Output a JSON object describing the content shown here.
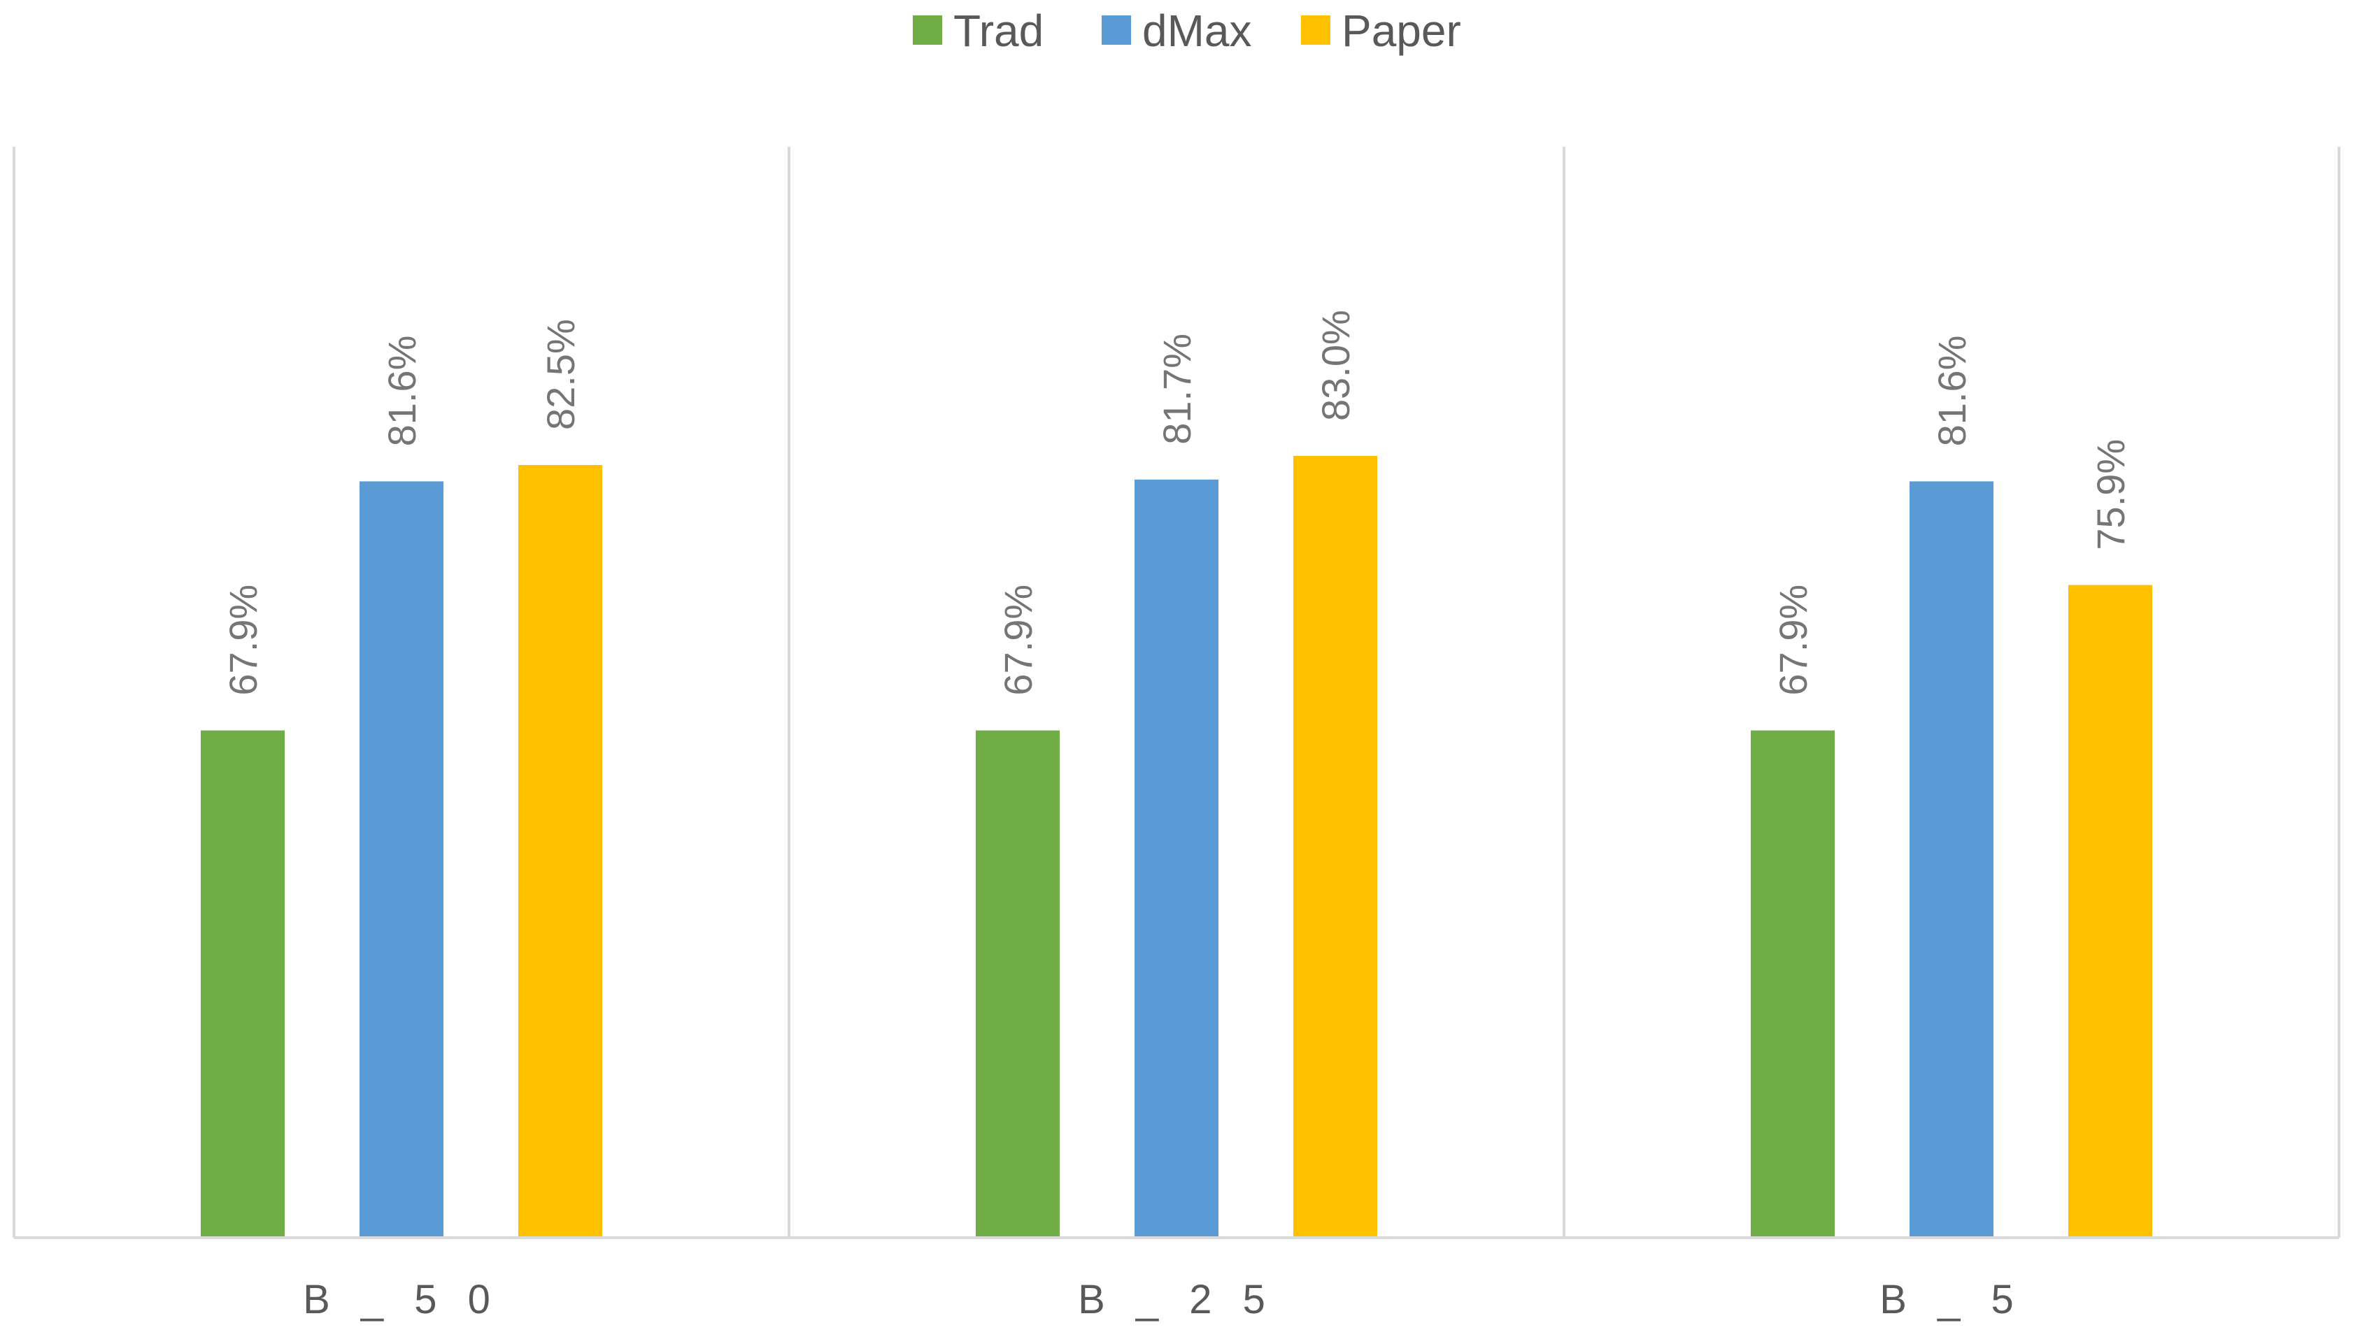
{
  "chart_data": {
    "type": "bar",
    "categories": [
      "B_50",
      "B_25",
      "B_5"
    ],
    "series": [
      {
        "name": "Trad",
        "color": "#70AD47",
        "values": [
          67.9,
          67.9,
          67.9
        ]
      },
      {
        "name": "dMax",
        "color": "#5B9BD5",
        "values": [
          81.6,
          81.7,
          81.6
        ]
      },
      {
        "name": "Paper",
        "color": "#FFC000",
        "values": [
          82.5,
          83.0,
          75.9
        ]
      }
    ],
    "data_labels": [
      [
        "67.9%",
        "67.9%",
        "67.9%"
      ],
      [
        "81.6%",
        "81.7%",
        "81.6%"
      ],
      [
        "82.5%",
        "83.0%",
        "75.9%"
      ]
    ],
    "legend_position": "top-center",
    "grid": "vertical category separators",
    "ylim": [
      40,
      100
    ]
  }
}
